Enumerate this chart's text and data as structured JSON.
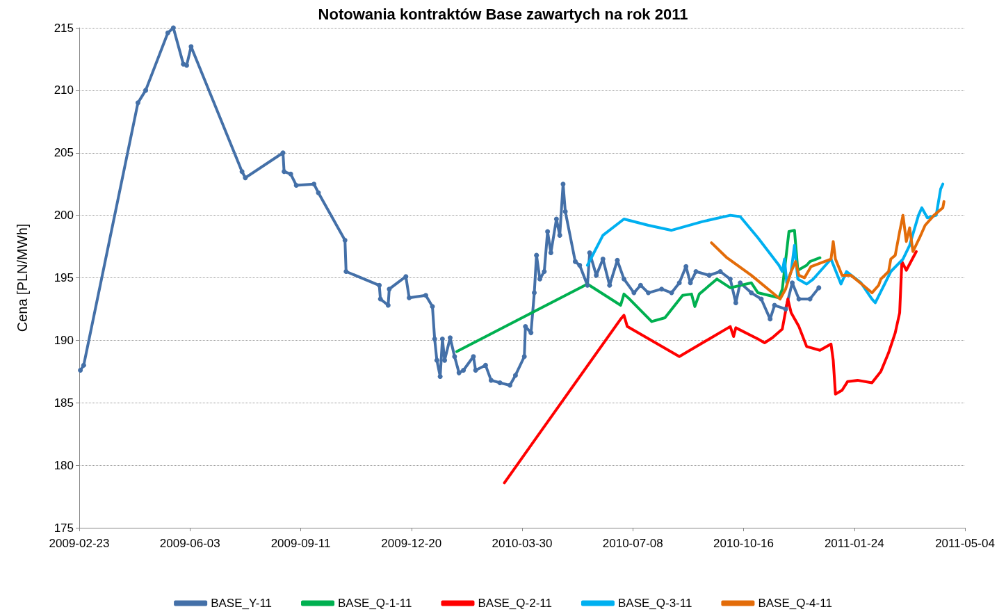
{
  "chart_data": {
    "type": "line",
    "title": "Notowania kontraktów Base zawartych na rok 2011",
    "ylabel": "Cena [PLN/MWh]",
    "xlim": [
      "2009-02-23",
      "2011-05-04"
    ],
    "xticks": [
      "2009-02-23",
      "2009-06-03",
      "2009-09-11",
      "2009-12-20",
      "2010-03-30",
      "2010-07-08",
      "2010-10-16",
      "2011-01-24",
      "2011-05-04"
    ],
    "ylim": [
      175,
      215
    ],
    "yticks": [
      175,
      180,
      185,
      190,
      195,
      200,
      205,
      210,
      215
    ],
    "grid": "y",
    "legend": "bottom",
    "line_style": "solid",
    "series": [
      {
        "name": "BASE_Y-11",
        "color": "#4470a8",
        "marker": "circle",
        "x": [
          "2009-02-24",
          "2009-02-27",
          "2009-04-17",
          "2009-04-24",
          "2009-05-14",
          "2009-05-19",
          "2009-05-28",
          "2009-05-31",
          "2009-06-04",
          "2009-07-20",
          "2009-07-23",
          "2009-08-26",
          "2009-08-27",
          "2009-09-02",
          "2009-09-07",
          "2009-09-23",
          "2009-09-27",
          "2009-10-21",
          "2009-10-22",
          "2009-11-21",
          "2009-11-22",
          "2009-11-29",
          "2009-11-30",
          "2009-12-15",
          "2009-12-18",
          "2010-01-02",
          "2010-01-08",
          "2010-01-10",
          "2010-01-12",
          "2010-01-15",
          "2010-01-17",
          "2010-01-19",
          "2010-01-24",
          "2010-01-28",
          "2010-02-01",
          "2010-02-05",
          "2010-02-14",
          "2010-02-16",
          "2010-02-25",
          "2010-03-02",
          "2010-03-10",
          "2010-03-19",
          "2010-03-24",
          "2010-04-01",
          "2010-04-02",
          "2010-04-07",
          "2010-04-10",
          "2010-04-12",
          "2010-04-15",
          "2010-04-19",
          "2010-04-22",
          "2010-04-25",
          "2010-04-30",
          "2010-05-03",
          "2010-05-06",
          "2010-05-08",
          "2010-05-17",
          "2010-05-21",
          "2010-05-28",
          "2010-05-30",
          "2010-06-05",
          "2010-06-11",
          "2010-06-17",
          "2010-06-24",
          "2010-06-30",
          "2010-07-09",
          "2010-07-15",
          "2010-07-22",
          "2010-08-03",
          "2010-08-12",
          "2010-08-19",
          "2010-08-25",
          "2010-08-29",
          "2010-09-03",
          "2010-09-15",
          "2010-09-25",
          "2010-10-04",
          "2010-10-09",
          "2010-10-13",
          "2010-10-23",
          "2010-11-01",
          "2010-11-09",
          "2010-11-13",
          "2010-11-23",
          "2010-11-29",
          "2010-12-05",
          "2010-12-15",
          "2010-12-23"
        ],
        "values": [
          187.6,
          188.0,
          209.0,
          210.0,
          214.6,
          215.0,
          212.1,
          212.0,
          213.5,
          203.5,
          203.0,
          205.0,
          203.5,
          203.3,
          202.4,
          202.5,
          201.8,
          198.0,
          195.5,
          194.4,
          193.3,
          192.8,
          194.1,
          195.1,
          193.4,
          193.6,
          192.7,
          190.1,
          188.4,
          187.1,
          190.1,
          188.4,
          190.2,
          188.7,
          187.4,
          187.6,
          188.7,
          187.6,
          188.0,
          186.8,
          186.6,
          186.4,
          187.2,
          188.7,
          191.1,
          190.6,
          193.8,
          196.8,
          194.9,
          195.5,
          198.7,
          197.0,
          199.7,
          198.4,
          202.5,
          200.3,
          196.3,
          196.0,
          194.4,
          197.0,
          195.2,
          196.5,
          194.4,
          196.4,
          194.9,
          193.8,
          194.4,
          193.8,
          194.1,
          193.8,
          194.6,
          195.9,
          194.6,
          195.5,
          195.2,
          195.5,
          194.9,
          193.0,
          194.6,
          193.8,
          193.3,
          191.7,
          192.8,
          192.5,
          194.6,
          193.3,
          193.3,
          194.2
        ]
      },
      {
        "name": "BASE_Q-1-11",
        "color": "#00b050",
        "marker": "none",
        "x": [
          "2010-01-30",
          "2010-05-28",
          "2010-06-27",
          "2010-06-30",
          "2010-07-05",
          "2010-07-25",
          "2010-08-06",
          "2010-08-22",
          "2010-08-30",
          "2010-09-02",
          "2010-09-06",
          "2010-09-22",
          "2010-10-04",
          "2010-10-23",
          "2010-10-29",
          "2010-11-17",
          "2010-11-20",
          "2010-11-26",
          "2010-12-01",
          "2010-12-04",
          "2010-12-12",
          "2010-12-15",
          "2010-12-24"
        ],
        "values": [
          189.1,
          194.5,
          192.8,
          193.7,
          193.3,
          191.5,
          191.8,
          193.6,
          193.7,
          192.7,
          193.7,
          194.9,
          194.2,
          194.6,
          193.8,
          193.4,
          194.1,
          198.7,
          198.8,
          195.6,
          196.0,
          196.3,
          196.6
        ]
      },
      {
        "name": "BASE_Q-2-11",
        "color": "#ff0000",
        "marker": "none",
        "x": [
          "2010-03-14",
          "2010-06-27",
          "2010-06-30",
          "2010-07-03",
          "2010-08-19",
          "2010-10-04",
          "2010-10-07",
          "2010-10-09",
          "2010-10-29",
          "2010-11-04",
          "2010-11-11",
          "2010-11-20",
          "2010-11-25",
          "2010-11-28",
          "2010-12-05",
          "2010-12-12",
          "2010-12-16",
          "2010-12-24",
          "2011-01-03",
          "2011-01-05",
          "2011-01-07",
          "2011-01-13",
          "2011-01-18",
          "2011-01-27",
          "2011-02-09",
          "2011-02-17",
          "2011-02-24",
          "2011-03-02",
          "2011-03-06",
          "2011-03-08",
          "2011-03-12",
          "2011-03-21"
        ],
        "values": [
          178.6,
          191.7,
          192.0,
          191.1,
          188.7,
          191.1,
          190.3,
          191.0,
          190.1,
          189.8,
          190.2,
          190.9,
          193.3,
          192.2,
          191.1,
          189.5,
          189.4,
          189.2,
          189.7,
          188.4,
          185.7,
          186.0,
          186.7,
          186.8,
          186.6,
          187.5,
          189.0,
          190.6,
          192.2,
          196.3,
          195.6,
          197.1
        ]
      },
      {
        "name": "BASE_Q-3-11",
        "color": "#00b0f0",
        "marker": "none",
        "x": [
          "2010-05-28",
          "2010-06-11",
          "2010-06-30",
          "2010-07-22",
          "2010-08-12",
          "2010-09-09",
          "2010-10-04",
          "2010-10-13",
          "2010-10-29",
          "2010-11-17",
          "2010-11-20",
          "2010-11-22",
          "2010-11-24",
          "2010-11-28",
          "2010-12-01",
          "2010-12-04",
          "2010-12-12",
          "2010-12-18",
          "2011-01-03",
          "2011-01-12",
          "2011-01-17",
          "2011-01-30",
          "2011-02-09",
          "2011-02-12",
          "2011-02-21",
          "2011-02-26",
          "2011-03-09",
          "2011-03-15",
          "2011-03-23",
          "2011-03-26",
          "2011-03-31",
          "2011-04-08",
          "2011-04-12",
          "2011-04-14"
        ],
        "values": [
          196.0,
          198.4,
          199.7,
          199.2,
          198.8,
          199.5,
          200.0,
          199.9,
          198.2,
          196.0,
          195.5,
          196.5,
          194.6,
          195.5,
          197.6,
          194.9,
          194.5,
          194.9,
          196.5,
          194.5,
          195.5,
          194.6,
          193.3,
          193.0,
          194.6,
          195.5,
          196.5,
          197.6,
          200.0,
          200.6,
          199.8,
          200.0,
          202.1,
          202.5
        ]
      },
      {
        "name": "BASE_Q-4-11",
        "color": "#e36c09",
        "marker": "none",
        "x": [
          "2010-09-17",
          "2010-10-01",
          "2010-10-23",
          "2010-11-18",
          "2010-11-23",
          "2010-11-28",
          "2010-12-02",
          "2010-12-05",
          "2010-12-10",
          "2010-12-16",
          "2011-01-03",
          "2011-01-05",
          "2011-01-07",
          "2011-01-13",
          "2011-01-21",
          "2011-02-01",
          "2011-02-09",
          "2011-02-15",
          "2011-02-17",
          "2011-02-24",
          "2011-02-26",
          "2011-03-02",
          "2011-03-06",
          "2011-03-09",
          "2011-03-12",
          "2011-03-15",
          "2011-03-18",
          "2011-03-24",
          "2011-03-29",
          "2011-04-06",
          "2011-04-14",
          "2011-04-15"
        ],
        "values": [
          197.8,
          196.6,
          195.2,
          193.3,
          194.1,
          195.5,
          196.3,
          195.2,
          195.0,
          195.9,
          196.5,
          197.9,
          196.5,
          195.2,
          195.2,
          194.4,
          193.8,
          194.4,
          194.9,
          195.5,
          196.5,
          196.8,
          198.7,
          200.0,
          197.9,
          199.0,
          197.1,
          198.2,
          199.2,
          200.0,
          200.6,
          201.1
        ]
      }
    ]
  }
}
